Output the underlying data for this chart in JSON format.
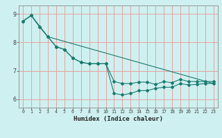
{
  "title": "",
  "xlabel": "Humidex (Indice chaleur)",
  "ylabel": "",
  "bg_color": "#cff0f0",
  "line_color": "#1a7a6e",
  "grid_color": "#e8a0a0",
  "ylim": [
    5.7,
    9.3
  ],
  "xlim": [
    -0.5,
    23.5
  ],
  "yticks": [
    6,
    7,
    8,
    9
  ],
  "xticks": [
    0,
    1,
    2,
    3,
    4,
    5,
    6,
    7,
    8,
    9,
    10,
    11,
    12,
    13,
    14,
    15,
    16,
    17,
    18,
    19,
    20,
    21,
    22,
    23
  ],
  "series1_x": [
    0,
    1,
    2,
    3,
    4,
    5,
    6,
    7,
    8,
    9,
    10,
    11,
    12,
    13,
    14,
    15,
    16,
    17,
    18,
    19,
    20,
    21,
    22,
    23
  ],
  "series1_y": [
    8.75,
    8.95,
    8.55,
    8.2,
    7.85,
    7.75,
    7.45,
    7.3,
    7.25,
    7.25,
    7.25,
    6.62,
    6.55,
    6.55,
    6.6,
    6.6,
    6.52,
    6.62,
    6.58,
    6.7,
    6.62,
    6.62,
    6.62,
    6.62
  ],
  "series2_x": [
    0,
    1,
    2,
    3,
    4,
    5,
    6,
    7,
    8,
    9,
    10,
    11,
    12,
    13,
    14,
    15,
    16,
    17,
    18,
    19,
    20,
    21,
    22,
    23
  ],
  "series2_y": [
    8.75,
    8.95,
    8.55,
    8.2,
    7.85,
    7.75,
    7.45,
    7.3,
    7.25,
    7.25,
    7.25,
    6.2,
    6.15,
    6.2,
    6.3,
    6.3,
    6.38,
    6.42,
    6.42,
    6.55,
    6.5,
    6.52,
    6.55,
    6.55
  ],
  "series3_x": [
    0,
    1,
    3,
    23
  ],
  "series3_y": [
    8.75,
    8.95,
    8.2,
    6.55
  ]
}
